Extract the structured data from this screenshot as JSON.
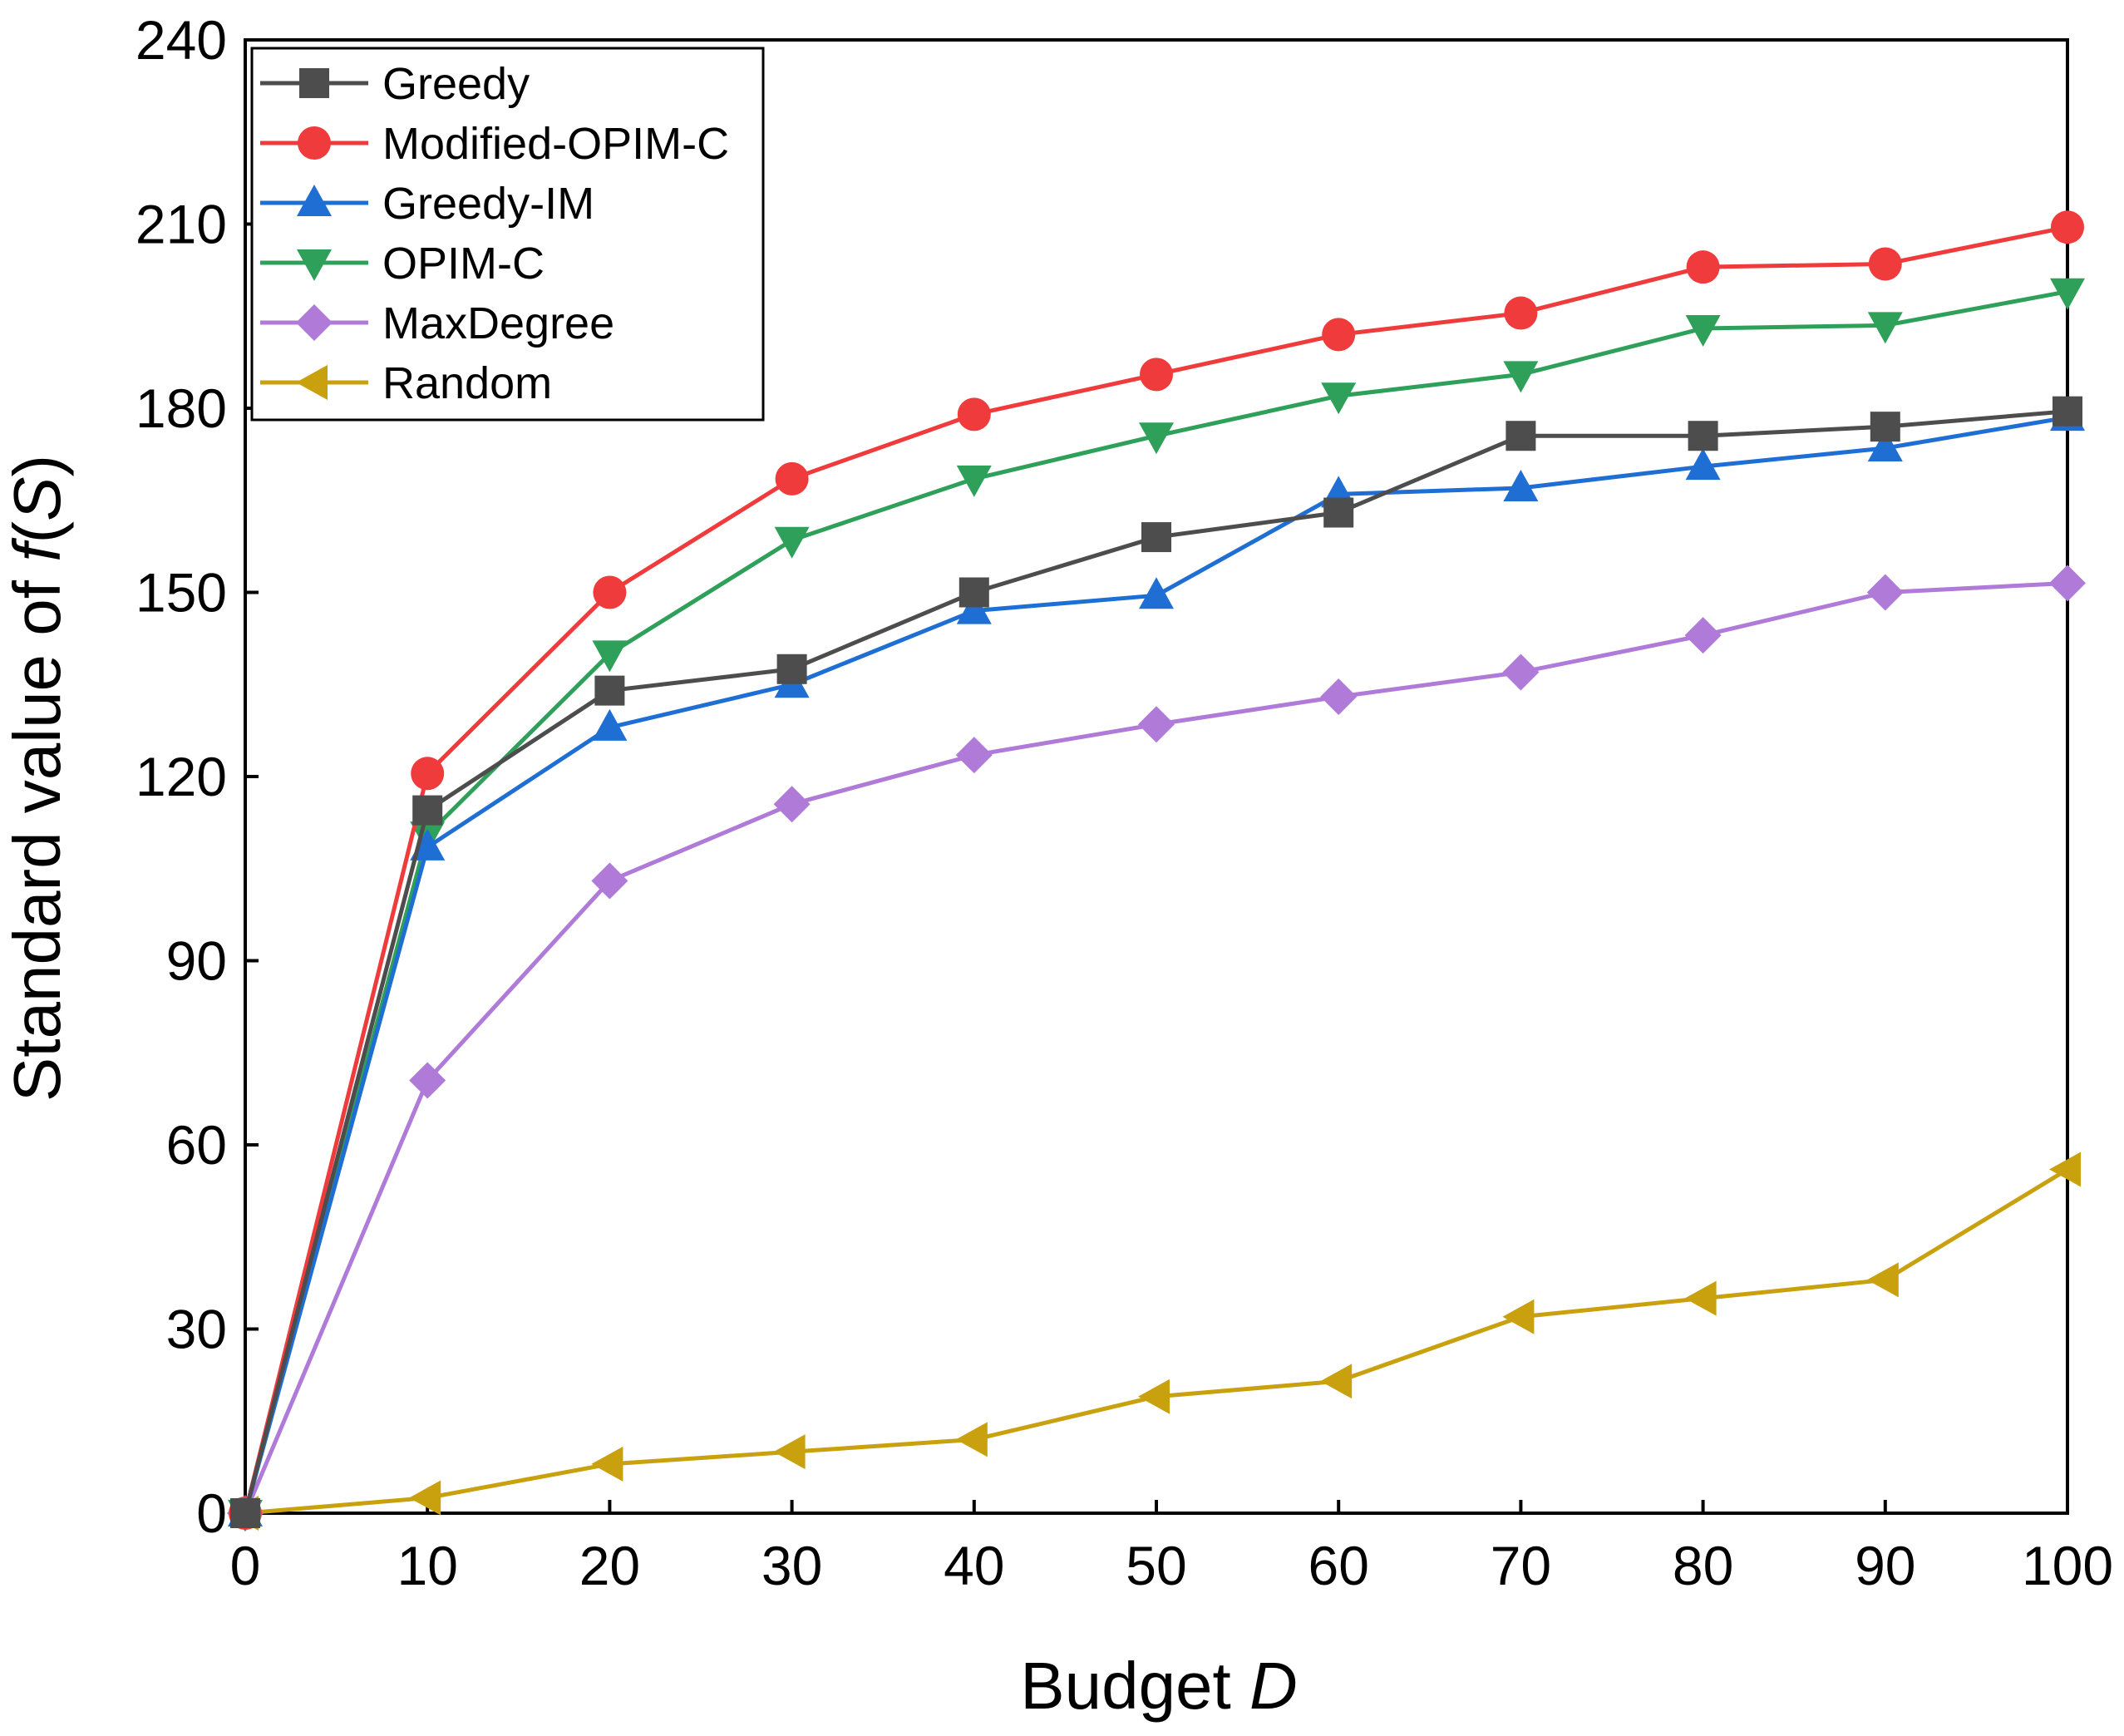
{
  "chart_data": {
    "type": "line",
    "xlabel": {
      "main": "Budget ",
      "italic": "D"
    },
    "ylabel": {
      "main": "Standard value of ",
      "italic_f": "f",
      "open": "(",
      "italic_s": "S",
      "close": ")"
    },
    "xlim": [
      0,
      100
    ],
    "ylim": [
      0,
      240
    ],
    "xticks": [
      0,
      10,
      20,
      30,
      40,
      50,
      60,
      70,
      80,
      90,
      100
    ],
    "yticks": [
      0,
      30,
      60,
      90,
      120,
      150,
      180,
      210,
      240
    ],
    "grid": false,
    "legend_position": "top-left",
    "x": [
      0,
      10,
      20,
      30,
      40,
      50,
      60,
      70,
      80,
      90,
      100
    ],
    "series": [
      {
        "name": "Greedy",
        "color": "#4d4d4d",
        "marker": "square",
        "values": [
          0,
          114.5,
          134,
          137.5,
          150,
          159,
          163,
          175.5,
          175.5,
          177,
          179.5
        ]
      },
      {
        "name": "Modified-OPIM-C",
        "color": "#ef3b3b",
        "marker": "circle",
        "values": [
          0,
          120.5,
          150,
          168.5,
          179,
          185.5,
          192,
          195.5,
          203,
          203.5,
          209.5
        ]
      },
      {
        "name": "Greedy-IM",
        "color": "#1f6ed4",
        "marker": "triangle-up",
        "values": [
          0,
          108.5,
          128,
          135,
          147,
          149.5,
          166,
          167,
          170.5,
          173.5,
          178.5
        ]
      },
      {
        "name": "OPIM-C",
        "color": "#2ea05a",
        "marker": "triangle-down",
        "values": [
          0,
          110.5,
          140,
          158.5,
          168.5,
          175.5,
          182,
          185.5,
          193,
          193.5,
          199
        ]
      },
      {
        "name": "MaxDegree",
        "color": "#b07ad8",
        "marker": "diamond",
        "values": [
          0,
          70.5,
          103,
          115.5,
          123.5,
          128.5,
          133,
          137,
          143,
          150,
          151.5
        ]
      },
      {
        "name": "Random",
        "color": "#c9a10e",
        "marker": "triangle-left",
        "values": [
          0,
          2.5,
          8,
          10,
          12,
          19,
          21.5,
          32,
          35,
          38,
          56
        ]
      }
    ]
  }
}
